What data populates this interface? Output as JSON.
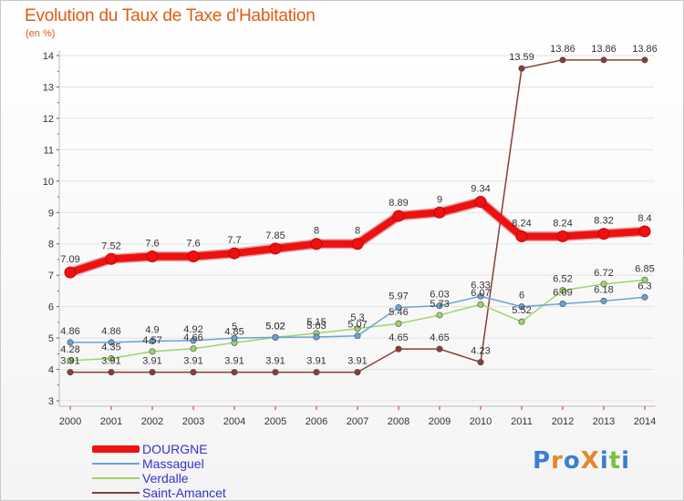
{
  "title": "Evolution du Taux de Taxe d'Habitation",
  "subtitle": "(en %)",
  "logo": {
    "text": "ProXiti",
    "letters": [
      {
        "ch": "P",
        "color": "#3a7fd0"
      },
      {
        "ch": "r",
        "color": "#e0882a"
      },
      {
        "ch": "o",
        "color": "#3a7fd0"
      },
      {
        "ch": "X",
        "color": "#e0882a"
      },
      {
        "ch": "i",
        "color": "#3a7fd0"
      },
      {
        "ch": "t",
        "color": "#7cc044"
      },
      {
        "ch": "i",
        "color": "#3a7fd0"
      }
    ]
  },
  "chart_data": {
    "type": "line",
    "title": "Evolution du Taux de Taxe d'Habitation",
    "subtitle": "(en %)",
    "x": [
      2000,
      2001,
      2002,
      2003,
      2004,
      2005,
      2006,
      2007,
      2008,
      2009,
      2010,
      2011,
      2012,
      2013,
      2014
    ],
    "ylim": [
      3,
      14
    ],
    "yticks": [
      3,
      4,
      5,
      6,
      7,
      8,
      9,
      10,
      11,
      12,
      13,
      14
    ],
    "legend_position": "bottom-left",
    "series": [
      {
        "name": "DOURGNE",
        "color": "#ee1111",
        "values": [
          7.09,
          7.52,
          7.6,
          7.6,
          7.7,
          7.85,
          8,
          8,
          8.89,
          9,
          9.34,
          8.24,
          8.24,
          8.32,
          8.4
        ],
        "labels": [
          "7.09",
          "7.52",
          "7.6",
          "7.6",
          "7.7",
          "7.85",
          "8",
          "8",
          "8.89",
          "9",
          "9.34",
          "8.24",
          "8.24",
          "8.32",
          "8.4"
        ]
      },
      {
        "name": "Massaguel",
        "color": "#6aa3d6",
        "values": [
          4.86,
          4.86,
          4.9,
          4.92,
          5,
          5.02,
          5.03,
          5.07,
          5.97,
          6.03,
          6.33,
          6,
          6.09,
          6.18,
          6.3
        ],
        "labels": [
          "4.86",
          "4.86",
          "4.9",
          "4.92",
          "5",
          "5.02",
          "5.03",
          "5.07",
          "5.97",
          "6.03",
          "6.33",
          "6",
          "6.09",
          "6.18",
          "6.3"
        ]
      },
      {
        "name": "Verdalle",
        "color": "#9fd46a",
        "values": [
          4.28,
          4.35,
          4.57,
          4.66,
          4.85,
          5.02,
          5.15,
          5.3,
          5.46,
          5.73,
          6.07,
          5.52,
          6.52,
          6.72,
          6.85
        ],
        "labels": [
          "4.28",
          "4.35",
          "4.57",
          "4.66",
          "4.85",
          "5.02",
          "5.15",
          "5.3",
          "5.46",
          "5.73",
          "6.07",
          "5.52",
          "6.52",
          "6.72",
          "6.85"
        ]
      },
      {
        "name": "Saint-Amancet",
        "color": "#8a3c3c",
        "values": [
          3.91,
          3.91,
          3.91,
          3.91,
          3.91,
          3.91,
          3.91,
          3.91,
          4.65,
          4.65,
          4.23,
          13.59,
          13.86,
          13.86,
          13.86
        ],
        "labels": [
          "3.91",
          "3.91",
          "3.91",
          "3.91",
          "3.91",
          "3.91",
          "3.91",
          "3.91",
          "4.65",
          "4.65",
          "4.23",
          "13.59",
          "13.86",
          "13.86",
          "13.86"
        ]
      }
    ]
  }
}
